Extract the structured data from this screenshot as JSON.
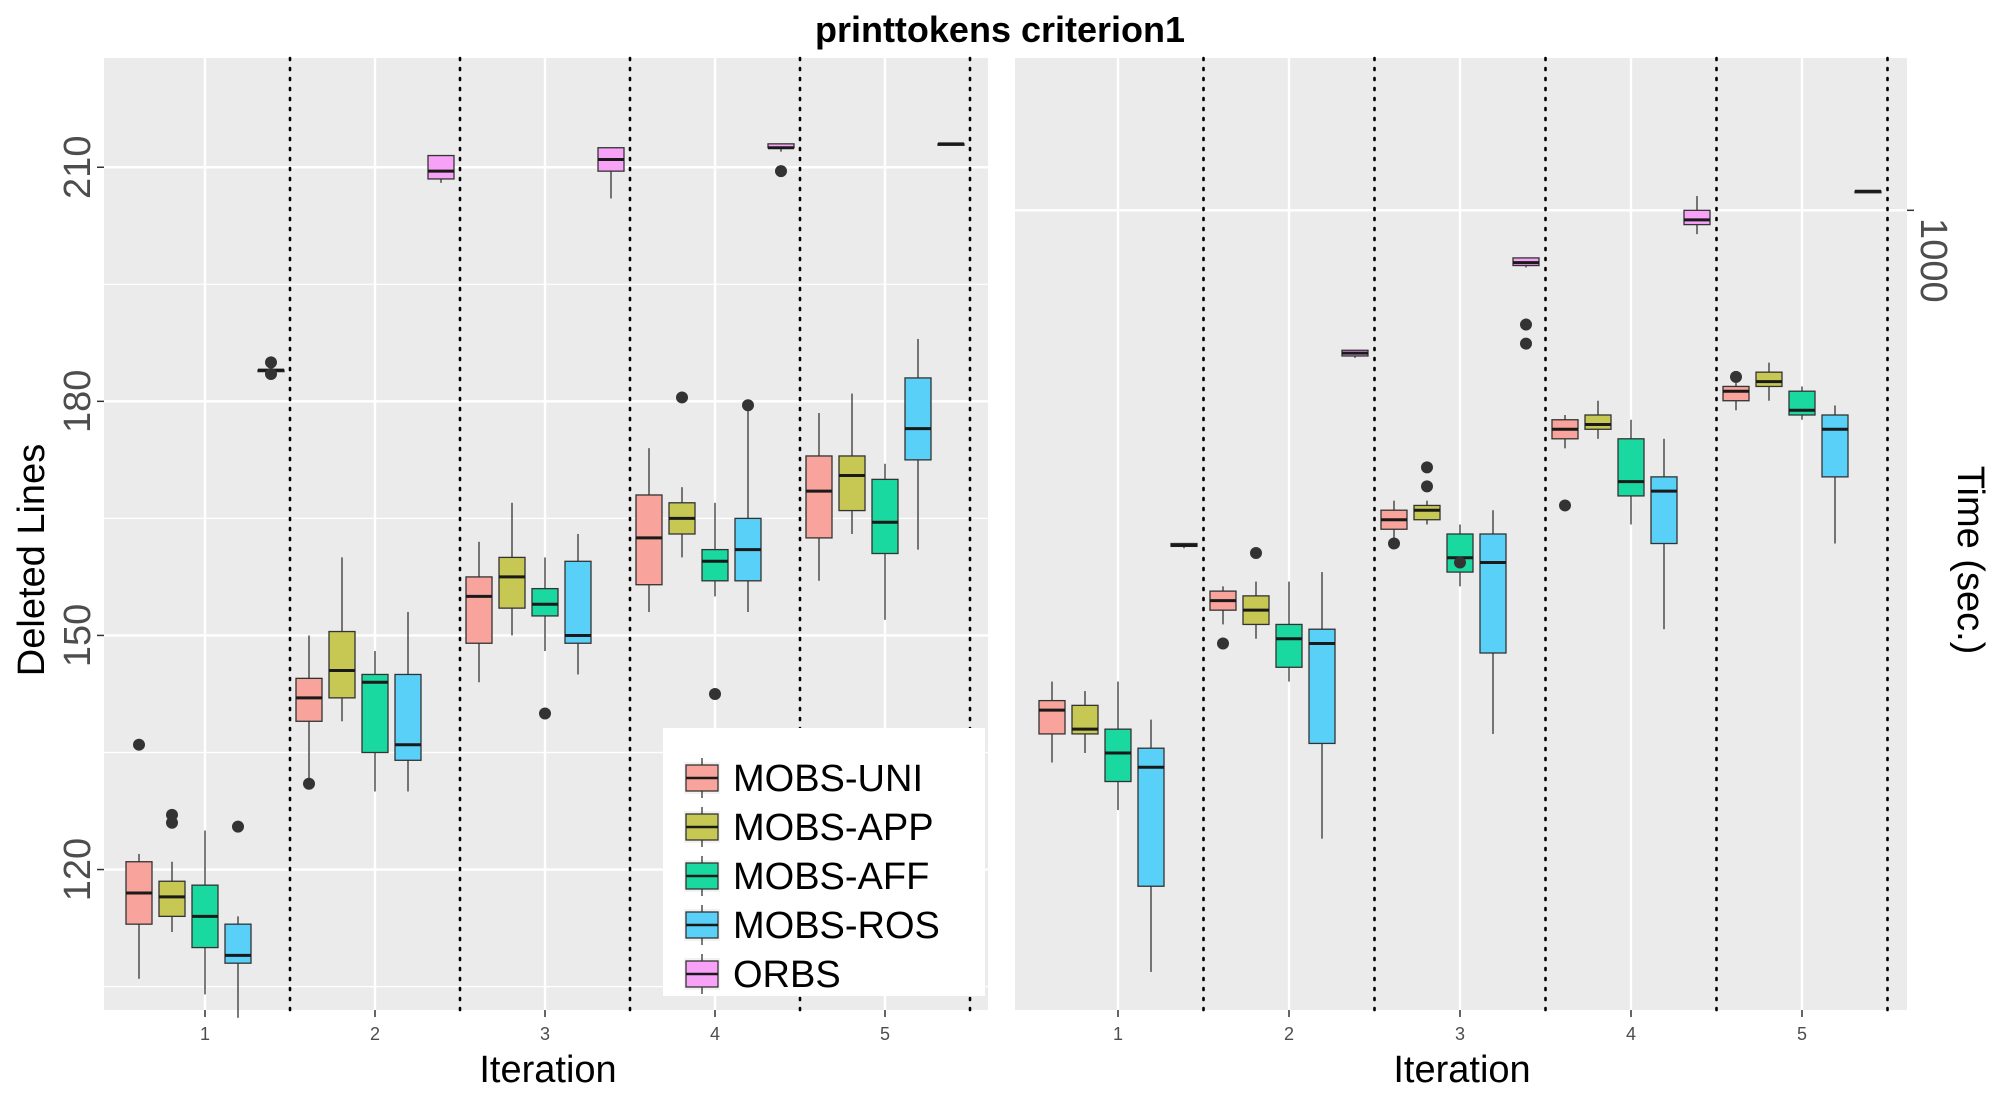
{
  "chart_data": {
    "type": "boxplot",
    "title": "printtokens criterion1",
    "legend": {
      "position": "inside-bottom-left",
      "items": [
        {
          "name": "MOBS-UNI",
          "color": "#F8A39B"
        },
        {
          "name": "MOBS-APP",
          "color": "#C6C853"
        },
        {
          "name": "MOBS-AFF",
          "color": "#19D9A0"
        },
        {
          "name": "MOBS-ROS",
          "color": "#58D0F8"
        },
        {
          "name": "ORBS",
          "color": "#F7A1F7"
        }
      ]
    },
    "panels": [
      {
        "xlabel": "Iteration",
        "ylabel": "Deleted Lines",
        "categories": [
          "1",
          "2",
          "3",
          "4",
          "5"
        ],
        "ylim": [
          102,
          224
        ],
        "yticks": [
          120,
          150,
          180,
          210
        ],
        "boxes": [
          {
            "iter": 1,
            "series": "MOBS-UNI",
            "min": 106,
            "q1": 113,
            "median": 117,
            "q3": 121,
            "max": 122,
            "outliers": [
              136
            ]
          },
          {
            "iter": 1,
            "series": "MOBS-APP",
            "min": 112,
            "q1": 114,
            "median": 116.5,
            "q3": 118.5,
            "max": 121,
            "outliers": [
              126,
              127
            ]
          },
          {
            "iter": 1,
            "series": "MOBS-AFF",
            "min": 104,
            "q1": 110,
            "median": 114,
            "q3": 118,
            "max": 125,
            "outliers": []
          },
          {
            "iter": 1,
            "series": "MOBS-ROS",
            "min": 101,
            "q1": 108,
            "median": 109,
            "q3": 113,
            "max": 114,
            "outliers": [
              125.5
            ]
          },
          {
            "iter": 1,
            "series": "ORBS",
            "min": 184,
            "q1": 184,
            "median": 184,
            "q3": 184,
            "max": 184,
            "outliers": [
              183.5,
              185
            ]
          },
          {
            "iter": 2,
            "series": "MOBS-UNI",
            "min": 131,
            "q1": 139,
            "median": 142,
            "q3": 144.5,
            "max": 150,
            "outliers": [
              131
            ]
          },
          {
            "iter": 2,
            "series": "MOBS-APP",
            "min": 139,
            "q1": 142,
            "median": 145.5,
            "q3": 150.5,
            "max": 160,
            "outliers": []
          },
          {
            "iter": 2,
            "series": "MOBS-AFF",
            "min": 130,
            "q1": 135,
            "median": 144,
            "q3": 145,
            "max": 148,
            "outliers": []
          },
          {
            "iter": 2,
            "series": "MOBS-ROS",
            "min": 130,
            "q1": 134,
            "median": 136,
            "q3": 145,
            "max": 153,
            "outliers": []
          },
          {
            "iter": 2,
            "series": "ORBS",
            "min": 208,
            "q1": 208.5,
            "median": 209.5,
            "q3": 211.5,
            "max": 211.5,
            "outliers": []
          },
          {
            "iter": 3,
            "series": "MOBS-UNI",
            "min": 144,
            "q1": 149,
            "median": 155,
            "q3": 157.5,
            "max": 162,
            "outliers": []
          },
          {
            "iter": 3,
            "series": "MOBS-APP",
            "min": 150,
            "q1": 153.5,
            "median": 157.5,
            "q3": 160,
            "max": 167,
            "outliers": []
          },
          {
            "iter": 3,
            "series": "MOBS-AFF",
            "min": 148,
            "q1": 152.5,
            "median": 154,
            "q3": 156,
            "max": 160,
            "outliers": [
              140
            ]
          },
          {
            "iter": 3,
            "series": "MOBS-ROS",
            "min": 145,
            "q1": 149,
            "median": 150,
            "q3": 159.5,
            "max": 163,
            "outliers": []
          },
          {
            "iter": 3,
            "series": "ORBS",
            "min": 206,
            "q1": 209.5,
            "median": 211,
            "q3": 212.5,
            "max": 212.5,
            "outliers": []
          },
          {
            "iter": 4,
            "series": "MOBS-UNI",
            "min": 153,
            "q1": 156.5,
            "median": 162.5,
            "q3": 168,
            "max": 174,
            "outliers": []
          },
          {
            "iter": 4,
            "series": "MOBS-APP",
            "min": 160,
            "q1": 163,
            "median": 165,
            "q3": 167,
            "max": 169,
            "outliers": [
              180.5
            ]
          },
          {
            "iter": 4,
            "series": "MOBS-AFF",
            "min": 155,
            "q1": 157,
            "median": 159.5,
            "q3": 161,
            "max": 167,
            "outliers": [
              142.5
            ]
          },
          {
            "iter": 4,
            "series": "MOBS-ROS",
            "min": 153,
            "q1": 157,
            "median": 161,
            "q3": 165,
            "max": 179,
            "outliers": [
              179.5
            ]
          },
          {
            "iter": 4,
            "series": "ORBS",
            "min": 212,
            "q1": 212.5,
            "median": 212.5,
            "q3": 213,
            "max": 213,
            "outliers": [
              209.5
            ]
          },
          {
            "iter": 5,
            "series": "MOBS-UNI",
            "min": 157,
            "q1": 162.5,
            "median": 168.5,
            "q3": 173,
            "max": 178.5,
            "outliers": []
          },
          {
            "iter": 5,
            "series": "MOBS-APP",
            "min": 163,
            "q1": 166,
            "median": 170.5,
            "q3": 173,
            "max": 181,
            "outliers": []
          },
          {
            "iter": 5,
            "series": "MOBS-AFF",
            "min": 152,
            "q1": 160.5,
            "median": 164.5,
            "q3": 170,
            "max": 172,
            "outliers": []
          },
          {
            "iter": 5,
            "series": "MOBS-ROS",
            "min": 161,
            "q1": 172.5,
            "median": 176.5,
            "q3": 183,
            "max": 188,
            "outliers": []
          },
          {
            "iter": 5,
            "series": "ORBS",
            "min": 213,
            "q1": 213,
            "median": 213,
            "q3": 213,
            "max": 213,
            "outliers": []
          }
        ]
      },
      {
        "xlabel": "Iteration",
        "ylabel": "Time (sec.)",
        "ylabel_side": "right",
        "categories": [
          "1",
          "2",
          "3",
          "4",
          "5"
        ],
        "ylim": [
          0,
          1000
        ],
        "yticks": [
          1000
        ],
        "ytick_at": 840,
        "boxes": [
          {
            "iter": 1,
            "series": "MOBS-UNI",
            "min": 260,
            "q1": 290,
            "median": 315,
            "q3": 325,
            "max": 345,
            "outliers": []
          },
          {
            "iter": 1,
            "series": "MOBS-APP",
            "min": 270,
            "q1": 290,
            "median": 295,
            "q3": 320,
            "max": 335,
            "outliers": []
          },
          {
            "iter": 1,
            "series": "MOBS-AFF",
            "min": 210,
            "q1": 240,
            "median": 270,
            "q3": 295,
            "max": 345,
            "outliers": []
          },
          {
            "iter": 1,
            "series": "MOBS-ROS",
            "min": 40,
            "q1": 130,
            "median": 255,
            "q3": 275,
            "max": 305,
            "outliers": []
          },
          {
            "iter": 1,
            "series": "ORBS",
            "min": 485,
            "q1": 487,
            "median": 488,
            "q3": 490,
            "max": 490,
            "outliers": []
          },
          {
            "iter": 2,
            "series": "MOBS-UNI",
            "min": 405,
            "q1": 420,
            "median": 430,
            "q3": 440,
            "max": 445,
            "outliers": [
              385
            ]
          },
          {
            "iter": 2,
            "series": "MOBS-APP",
            "min": 390,
            "q1": 405,
            "median": 420,
            "q3": 435,
            "max": 450,
            "outliers": [
              480
            ]
          },
          {
            "iter": 2,
            "series": "MOBS-AFF",
            "min": 345,
            "q1": 360,
            "median": 390,
            "q3": 405,
            "max": 450,
            "outliers": []
          },
          {
            "iter": 2,
            "series": "MOBS-ROS",
            "min": 180,
            "q1": 280,
            "median": 385,
            "q3": 400,
            "max": 460,
            "outliers": []
          },
          {
            "iter": 2,
            "series": "ORBS",
            "min": 685,
            "q1": 687,
            "median": 690,
            "q3": 693,
            "max": 693,
            "outliers": []
          },
          {
            "iter": 3,
            "series": "MOBS-UNI",
            "min": 495,
            "q1": 505,
            "median": 515,
            "q3": 525,
            "max": 535,
            "outliers": [
              490
            ]
          },
          {
            "iter": 3,
            "series": "MOBS-APP",
            "min": 510,
            "q1": 515,
            "median": 525,
            "q3": 530,
            "max": 535,
            "outliers": [
              550,
              570
            ]
          },
          {
            "iter": 3,
            "series": "MOBS-AFF",
            "min": 445,
            "q1": 460,
            "median": 475,
            "q3": 500,
            "max": 510,
            "outliers": [
              470
            ]
          },
          {
            "iter": 3,
            "series": "MOBS-ROS",
            "min": 290,
            "q1": 375,
            "median": 470,
            "q3": 500,
            "max": 525,
            "outliers": []
          },
          {
            "iter": 3,
            "series": "ORBS",
            "min": 780,
            "q1": 782,
            "median": 785,
            "q3": 790,
            "max": 790,
            "outliers": [
              700,
              720
            ]
          },
          {
            "iter": 4,
            "series": "MOBS-UNI",
            "min": 590,
            "q1": 600,
            "median": 610,
            "q3": 620,
            "max": 625,
            "outliers": [
              530
            ]
          },
          {
            "iter": 4,
            "series": "MOBS-APP",
            "min": 600,
            "q1": 610,
            "median": 615,
            "q3": 625,
            "max": 640,
            "outliers": []
          },
          {
            "iter": 4,
            "series": "MOBS-AFF",
            "min": 510,
            "q1": 540,
            "median": 555,
            "q3": 600,
            "max": 620,
            "outliers": []
          },
          {
            "iter": 4,
            "series": "MOBS-ROS",
            "min": 400,
            "q1": 490,
            "median": 545,
            "q3": 560,
            "max": 600,
            "outliers": []
          },
          {
            "iter": 4,
            "series": "ORBS",
            "min": 815,
            "q1": 825,
            "median": 830,
            "q3": 840,
            "max": 855,
            "outliers": []
          },
          {
            "iter": 5,
            "series": "MOBS-UNI",
            "min": 630,
            "q1": 640,
            "median": 650,
            "q3": 655,
            "max": 660,
            "outliers": [
              665
            ]
          },
          {
            "iter": 5,
            "series": "MOBS-APP",
            "min": 640,
            "q1": 655,
            "median": 660,
            "q3": 670,
            "max": 680,
            "outliers": []
          },
          {
            "iter": 5,
            "series": "MOBS-AFF",
            "min": 620,
            "q1": 625,
            "median": 630,
            "q3": 650,
            "max": 655,
            "outliers": []
          },
          {
            "iter": 5,
            "series": "MOBS-ROS",
            "min": 490,
            "q1": 560,
            "median": 610,
            "q3": 625,
            "max": 635,
            "outliers": []
          },
          {
            "iter": 5,
            "series": "ORBS",
            "min": 860,
            "q1": 860,
            "median": 860,
            "q3": 860,
            "max": 860,
            "outliers": []
          }
        ]
      }
    ]
  }
}
